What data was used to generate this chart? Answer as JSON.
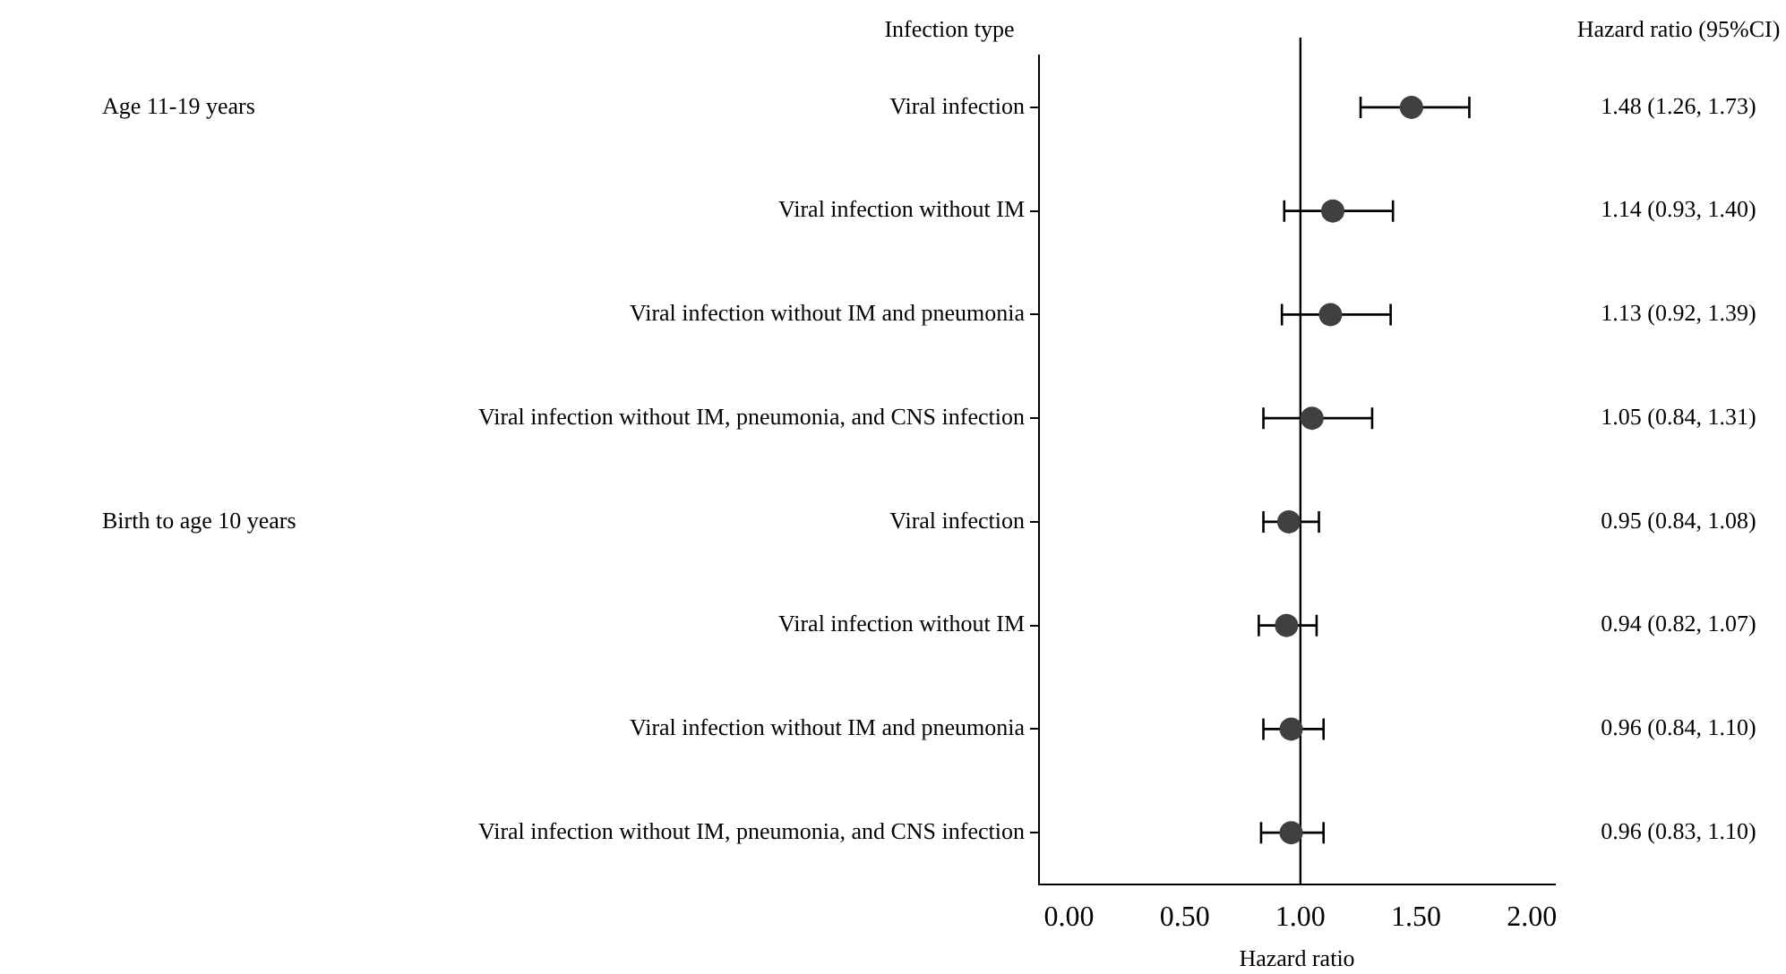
{
  "chart_data": {
    "type": "scatter",
    "orientation": "horizontal",
    "categories": [
      "Viral infection",
      "Viral infection without IM",
      "Viral infection without IM and pneumonia",
      "Viral infection without IM, pneumonia, and CNS infection",
      "Viral infection",
      "Viral infection without IM",
      "Viral infection without IM and pneumonia",
      "Viral infection without IM, pneumonia, and CNS infection"
    ],
    "values": [
      1.48,
      1.14,
      1.13,
      1.05,
      0.95,
      0.94,
      0.96,
      0.96
    ],
    "errors": [
      [
        1.26,
        1.73
      ],
      [
        0.93,
        1.4
      ],
      [
        0.92,
        1.39
      ],
      [
        0.84,
        1.31
      ],
      [
        0.84,
        1.08
      ],
      [
        0.82,
        1.07
      ],
      [
        0.84,
        1.1
      ],
      [
        0.83,
        1.1
      ]
    ],
    "value_labels": [
      "1.48 (1.26, 1.73)",
      "1.14 (0.93, 1.40)",
      "1.13 (0.92, 1.39)",
      "1.05 (0.84, 1.31)",
      "0.95 (0.84, 1.08)",
      "0.94 (0.82, 1.07)",
      "0.96 (0.84, 1.10)",
      "0.96 (0.83, 1.10)"
    ],
    "color": "#404040",
    "marker": "circle",
    "xlim": [
      -0.13,
      2.1
    ],
    "xticks": [
      {
        "value": 0,
        "label": "0.00"
      },
      {
        "value": 0.5,
        "label": "0.50"
      },
      {
        "value": 1,
        "label": "1.00"
      },
      {
        "value": 1.5,
        "label": "1.50"
      },
      {
        "value": 2,
        "label": "2.00"
      }
    ],
    "xlabel": "Hazard ratio",
    "ref_lines": [
      {
        "axis": "x",
        "value": 1,
        "color": "#000000"
      }
    ],
    "annotations": [
      "Infection type",
      "Hazard ratio (95%CI)",
      "Age 11-19 years",
      "Birth to age 10 years"
    ],
    "grid": false
  }
}
